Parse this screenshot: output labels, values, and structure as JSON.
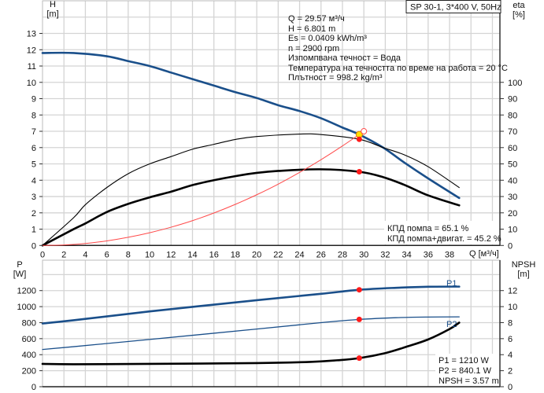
{
  "header": {
    "pump_label": "SP 30-1, 3*400 V, 50Hz"
  },
  "duty_info": [
    "Q = 29.57 м³/ч",
    "H = 6.801 m",
    "Es = 0.0409 kWh/m³",
    "n = 2900 rpm",
    "Изпомпвана течност = Вода",
    "Температура на течността по време на работа = 20 °C",
    "Плътност = 998.2 kg/m³"
  ],
  "efficiency_info": [
    "КПД помпа = 65.1 %",
    "КПД помпа+двигат. = 45.2 %"
  ],
  "power_info": [
    "P1 = 1210 W",
    "P2 = 840.1 W",
    "NPSH = 3.57 m"
  ],
  "colors": {
    "head": "#1a4f8a",
    "power": "#1a4f8a",
    "efficiency": "#000000",
    "system": "#ff4a4a",
    "duty_marker": "#ff1a1a",
    "duty_point": "#ffe000",
    "grid": "#d4d4d4"
  },
  "chart_data": [
    {
      "type": "line",
      "xlabel": "Q [м³/ч]",
      "ylabel": "H",
      "ylabel_unit": "[m]",
      "y2label": "eta",
      "y2label_unit": "[%]",
      "xlim": [
        0,
        42.7
      ],
      "ylim": [
        0,
        15
      ],
      "y2lim": [
        0,
        150
      ],
      "xticks": [
        0,
        2,
        4,
        6,
        8,
        10,
        12,
        14,
        16,
        18,
        20,
        22,
        24,
        26,
        28,
        30,
        32,
        34,
        36,
        38
      ],
      "yticks": [
        0,
        1,
        2,
        3,
        4,
        5,
        6,
        7,
        8,
        9,
        10,
        11,
        12,
        13
      ],
      "y2ticks": [
        0,
        10,
        20,
        30,
        40,
        50,
        60,
        70,
        80,
        90,
        100
      ],
      "grid": true,
      "series": [
        {
          "id": "head",
          "axis": "y",
          "points": [
            [
              0,
              11.8
            ],
            [
              2.9,
              11.8
            ],
            [
              6,
              11.6
            ],
            [
              8,
              11.3
            ],
            [
              10,
              11.0
            ],
            [
              12,
              10.6
            ],
            [
              14,
              10.2
            ],
            [
              16,
              9.8
            ],
            [
              18,
              9.4
            ],
            [
              20,
              9.04
            ],
            [
              22,
              8.6
            ],
            [
              24,
              8.24
            ],
            [
              26,
              7.8
            ],
            [
              28,
              7.23
            ],
            [
              29.57,
              6.8
            ],
            [
              31.8,
              6.0
            ],
            [
              33.8,
              5.07
            ],
            [
              36,
              4.11
            ],
            [
              38.9,
              2.91
            ]
          ]
        },
        {
          "id": "eta-pump",
          "axis": "y2",
          "points": [
            [
              0,
              0
            ],
            [
              2.9,
              17
            ],
            [
              4,
              25
            ],
            [
              6,
              35.5
            ],
            [
              8,
              44
            ],
            [
              10,
              50
            ],
            [
              12,
              54.5
            ],
            [
              14,
              59
            ],
            [
              16,
              62
            ],
            [
              18,
              65
            ],
            [
              20,
              66.8
            ],
            [
              24,
              68.3
            ],
            [
              26,
              68
            ],
            [
              29.57,
              65.1
            ],
            [
              31.8,
              60
            ],
            [
              33.8,
              55.5
            ],
            [
              36,
              48.3
            ],
            [
              38.9,
              35.5
            ]
          ]
        },
        {
          "id": "eta-total",
          "axis": "y2",
          "points": [
            [
              0,
              0
            ],
            [
              2.9,
              10
            ],
            [
              4,
              13.5
            ],
            [
              6,
              20.5
            ],
            [
              8,
              25.5
            ],
            [
              10,
              29.5
            ],
            [
              12,
              33
            ],
            [
              14,
              37
            ],
            [
              16,
              40
            ],
            [
              18,
              42.5
            ],
            [
              20,
              44.5
            ],
            [
              22,
              45.7
            ],
            [
              25.9,
              46.7
            ],
            [
              29.57,
              45.2
            ],
            [
              31.8,
              41.9
            ],
            [
              33.8,
              37.1
            ],
            [
              36,
              30.7
            ],
            [
              38.9,
              24.6
            ]
          ]
        },
        {
          "id": "system-curve",
          "axis": "y",
          "points": [
            [
              0,
              0
            ],
            [
              2,
              0.03
            ],
            [
              4,
              0.12
            ],
            [
              6,
              0.28
            ],
            [
              8,
              0.5
            ],
            [
              10,
              0.78
            ],
            [
              12,
              1.12
            ],
            [
              14,
              1.52
            ],
            [
              16,
              1.99
            ],
            [
              18,
              2.52
            ],
            [
              20,
              3.11
            ],
            [
              22,
              3.76
            ],
            [
              24,
              4.48
            ],
            [
              26,
              5.26
            ],
            [
              28,
              6.1
            ],
            [
              30,
              7.0
            ]
          ]
        }
      ],
      "markers": [
        {
          "id": "duty-head",
          "x": 29.57,
          "y": 6.8,
          "axis": "y",
          "style": "yellow"
        },
        {
          "id": "duty-eta-pump",
          "x": 29.57,
          "y": 65.1,
          "axis": "y2",
          "style": "red"
        },
        {
          "id": "duty-eta-total",
          "x": 29.57,
          "y": 45.2,
          "axis": "y2",
          "style": "red"
        },
        {
          "id": "system-end",
          "x": 30,
          "y": 7.0,
          "axis": "y",
          "style": "hollow"
        }
      ]
    },
    {
      "type": "line",
      "ylabel": "P",
      "ylabel_unit": "[W]",
      "y2label": "NPSH",
      "y2label_unit": "[m]",
      "xlim": [
        0,
        42.7
      ],
      "ylim": [
        0,
        1580
      ],
      "y2lim": [
        0,
        15.8
      ],
      "yticks": [
        0,
        200,
        400,
        600,
        800,
        1000,
        1200
      ],
      "y2ticks": [
        0,
        2,
        4,
        6,
        8,
        10,
        12
      ],
      "grid": true,
      "series": [
        {
          "id": "P1",
          "name": "P1",
          "axis": "y",
          "points": [
            [
              0,
              790
            ],
            [
              2.9,
              830
            ],
            [
              10,
              940
            ],
            [
              20,
              1080
            ],
            [
              26,
              1160
            ],
            [
              29.57,
              1210
            ],
            [
              33,
              1235
            ],
            [
              36,
              1248
            ],
            [
              38.9,
              1250
            ]
          ]
        },
        {
          "id": "P2",
          "name": "P2",
          "axis": "y",
          "points": [
            [
              0,
              465
            ],
            [
              2.9,
              500
            ],
            [
              10,
              590
            ],
            [
              20,
              720
            ],
            [
              26,
              800
            ],
            [
              29.57,
              840
            ],
            [
              33,
              862
            ],
            [
              36,
              870
            ],
            [
              38.9,
              872
            ]
          ]
        },
        {
          "id": "NPSH",
          "axis": "y2",
          "points": [
            [
              0,
              2.85
            ],
            [
              2.9,
              2.8
            ],
            [
              10,
              2.85
            ],
            [
              20,
              2.95
            ],
            [
              25,
              3.1
            ],
            [
              27.5,
              3.3
            ],
            [
              29.57,
              3.57
            ],
            [
              32,
              4.2
            ],
            [
              34,
              5.0
            ],
            [
              36,
              5.9
            ],
            [
              38,
              7.2
            ],
            [
              38.9,
              8.0
            ]
          ]
        }
      ],
      "markers": [
        {
          "id": "duty-P1",
          "x": 29.57,
          "y": 1210,
          "axis": "y",
          "style": "red"
        },
        {
          "id": "duty-P2",
          "x": 29.57,
          "y": 840.1,
          "axis": "y",
          "style": "red"
        },
        {
          "id": "duty-NPSH",
          "x": 29.57,
          "y": 3.57,
          "axis": "y2",
          "style": "red"
        }
      ]
    }
  ]
}
